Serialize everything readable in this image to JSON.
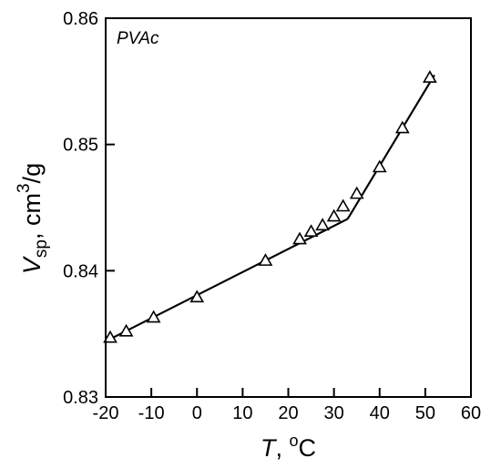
{
  "chart_data": {
    "type": "scatter",
    "annotation": "PVAc",
    "xlabel": {
      "italic": "T",
      "rest": ", ",
      "deg": "o",
      "unit": "C"
    },
    "ylabel": {
      "italic": "V",
      "sub": "sp",
      "rest": ", cm",
      "sup": "3",
      "tail": "/g"
    },
    "xlim": [
      -20,
      60
    ],
    "ylim": [
      0.83,
      0.86
    ],
    "xticks": [
      -20,
      -10,
      0,
      10,
      20,
      30,
      40,
      50,
      60
    ],
    "xtick_labels": [
      "-20",
      "-10",
      "0",
      "10",
      "20",
      "30",
      "40",
      "50",
      "60"
    ],
    "yticks": [
      0.83,
      0.84,
      0.85,
      0.86
    ],
    "ytick_labels": [
      "0.83",
      "0.84",
      "0.85",
      "0.86"
    ],
    "grid": false,
    "marker": "open-triangle",
    "points": [
      {
        "x": -19,
        "y": 0.8347
      },
      {
        "x": -15.5,
        "y": 0.8352
      },
      {
        "x": -9.5,
        "y": 0.8363
      },
      {
        "x": 0,
        "y": 0.8379
      },
      {
        "x": 15,
        "y": 0.8408
      },
      {
        "x": 22.5,
        "y": 0.8425
      },
      {
        "x": 25,
        "y": 0.8431
      },
      {
        "x": 27.5,
        "y": 0.8436
      },
      {
        "x": 30,
        "y": 0.8443
      },
      {
        "x": 32,
        "y": 0.8451
      },
      {
        "x": 35,
        "y": 0.8461
      },
      {
        "x": 40,
        "y": 0.8482
      },
      {
        "x": 45,
        "y": 0.8513
      },
      {
        "x": 51,
        "y": 0.8553
      }
    ],
    "fit_lines": [
      {
        "x": [
          -19.5,
          33
        ],
        "y": [
          0.8345,
          0.8441
        ]
      },
      {
        "x": [
          33,
          52
        ],
        "y": [
          0.8441,
          0.8555
        ]
      }
    ]
  }
}
